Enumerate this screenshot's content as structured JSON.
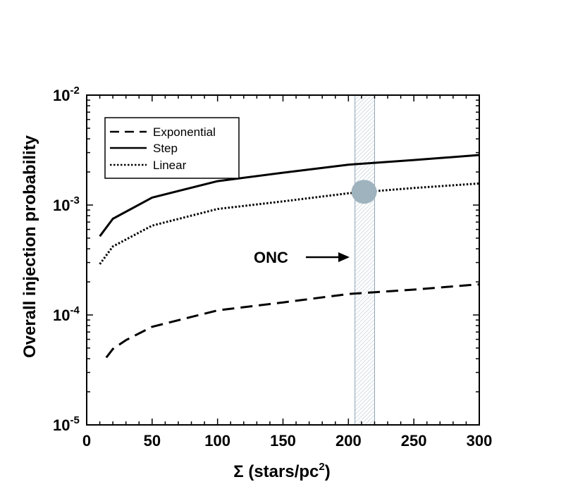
{
  "chart_data": {
    "type": "line",
    "title": "",
    "xlabel_symbol": "Σ",
    "xlabel_units": " (stars/pc",
    "xlabel_sup": "2",
    "xlabel_close": ")",
    "ylabel": "Overall injection probability",
    "xlim": [
      0,
      300
    ],
    "ylim": [
      1e-05,
      0.01
    ],
    "yscale": "log",
    "x_ticks": [
      {
        "value": 0,
        "label": "0"
      },
      {
        "value": 50,
        "label": "50"
      },
      {
        "value": 100,
        "label": "100"
      },
      {
        "value": 150,
        "label": "150"
      },
      {
        "value": 200,
        "label": "200"
      },
      {
        "value": 250,
        "label": "250"
      },
      {
        "value": 300,
        "label": "300"
      }
    ],
    "y_ticks": [
      {
        "value": 0.01,
        "base": "10",
        "exp": "-2"
      },
      {
        "value": 0.001,
        "base": "10",
        "exp": "-3"
      },
      {
        "value": 0.0001,
        "base": "10",
        "exp": "-4"
      },
      {
        "value": 1e-05,
        "base": "10",
        "exp": "-5"
      }
    ],
    "series": [
      {
        "name": "Exponential",
        "style": "dashed",
        "x": [
          15,
          20,
          30,
          50,
          100,
          150,
          200,
          250,
          300
        ],
        "y": [
          4.1e-05,
          4.9e-05,
          5.9e-05,
          7.8e-05,
          0.00011,
          0.00013,
          0.000155,
          0.00017,
          0.00019
        ]
      },
      {
        "name": "Step",
        "style": "solid",
        "x": [
          10,
          20,
          50,
          100,
          150,
          200,
          250,
          300
        ],
        "y": [
          0.00052,
          0.00075,
          0.00117,
          0.00165,
          0.00197,
          0.00233,
          0.00257,
          0.00285
        ]
      },
      {
        "name": "Linear",
        "style": "dotted",
        "x": [
          10,
          20,
          50,
          100,
          150,
          200,
          250,
          300
        ],
        "y": [
          0.00029,
          0.00042,
          0.00065,
          0.00092,
          0.00108,
          0.00128,
          0.00143,
          0.00157
        ]
      }
    ],
    "legend_position": "top-left",
    "shaded_band": {
      "x": [
        205,
        220
      ],
      "color": "#8fa3b5"
    },
    "marker": {
      "x": 212,
      "y": 0.00132,
      "color": "#9fb3be"
    },
    "annotation": {
      "text": "ONC"
    },
    "colors": {
      "line": "#000000",
      "band_edge": "#8fa3b5",
      "band_hatch": "#b8c6d2",
      "marker": "#9fb3be"
    }
  }
}
